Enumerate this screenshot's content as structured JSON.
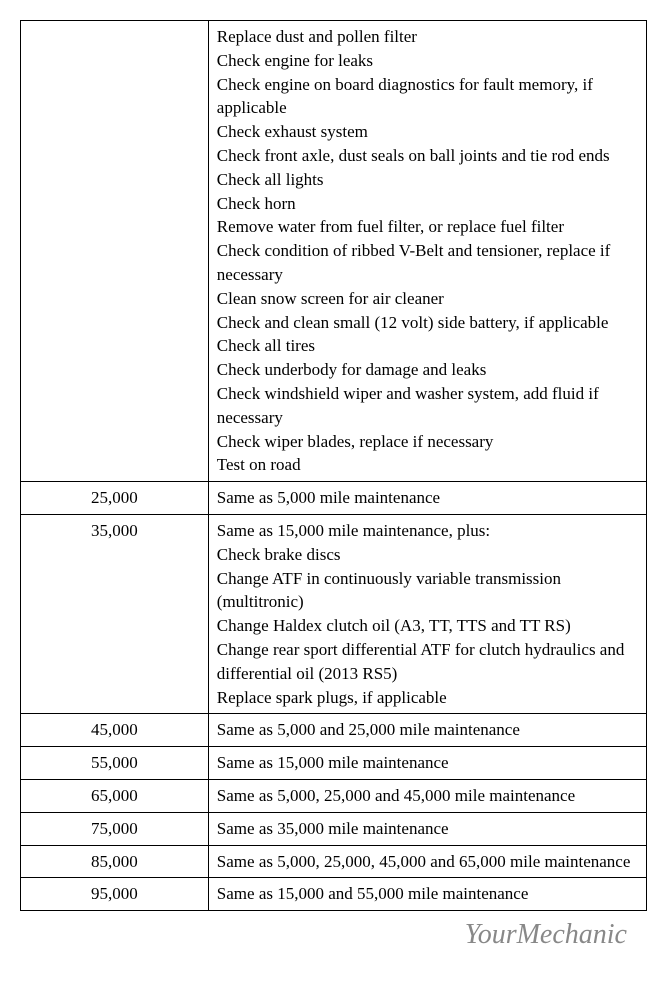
{
  "table": {
    "rows": [
      {
        "mileage": "",
        "services": [
          "Replace dust and pollen filter",
          "Check engine for leaks",
          "Check engine on board diagnostics for fault memory, if applicable",
          "Check exhaust system",
          "Check front axle, dust seals on ball joints and tie rod ends",
          "Check all lights",
          "Check horn",
          "Remove water from fuel filter, or replace fuel filter",
          "Check condition of ribbed V-Belt and tensioner, replace if necessary",
          "Clean snow screen for air cleaner",
          "Check and clean small (12 volt) side battery, if applicable",
          "Check all tires",
          "Check underbody for damage and leaks",
          "Check windshield wiper and washer system, add fluid if necessary",
          "Check wiper blades, replace if necessary",
          "Test on road"
        ]
      },
      {
        "mileage": "25,000",
        "services": [
          "Same as 5,000 mile maintenance"
        ]
      },
      {
        "mileage": "35,000",
        "services": [
          "Same as 15,000 mile maintenance, plus:",
          "Check brake discs",
          "Change ATF in continuously variable transmission (multitronic)",
          "Change Haldex clutch oil (A3, TT, TTS and TT RS)",
          "Change rear sport differential ATF for clutch hydraulics and differential oil (2013 RS5)",
          "Replace spark plugs, if applicable"
        ]
      },
      {
        "mileage": "45,000",
        "services": [
          "Same as 5,000 and 25,000 mile maintenance"
        ]
      },
      {
        "mileage": "55,000",
        "services": [
          "Same as 15,000 mile maintenance"
        ]
      },
      {
        "mileage": "65,000",
        "services": [
          "Same as 5,000, 25,000 and 45,000 mile maintenance"
        ]
      },
      {
        "mileage": "75,000",
        "services": [
          "Same as 35,000 mile maintenance"
        ]
      },
      {
        "mileage": "85,000",
        "services": [
          "Same as 5,000, 25,000, 45,000 and 65,000 mile maintenance"
        ]
      },
      {
        "mileage": "95,000",
        "services": [
          "Same as 15,000 and 55,000 mile maintenance"
        ]
      }
    ]
  },
  "watermark": {
    "text": "YourMechanic"
  },
  "styling": {
    "font_family": "Georgia, Times New Roman, serif",
    "font_size": 17,
    "line_height": 1.4,
    "text_color": "#000000",
    "background_color": "#ffffff",
    "border_color": "#000000",
    "border_width": 1.5,
    "watermark_font": "Brush Script MT, cursive",
    "watermark_size": 28,
    "watermark_color": "#888888",
    "mileage_col_width": "30%",
    "service_col_width": "70%"
  }
}
